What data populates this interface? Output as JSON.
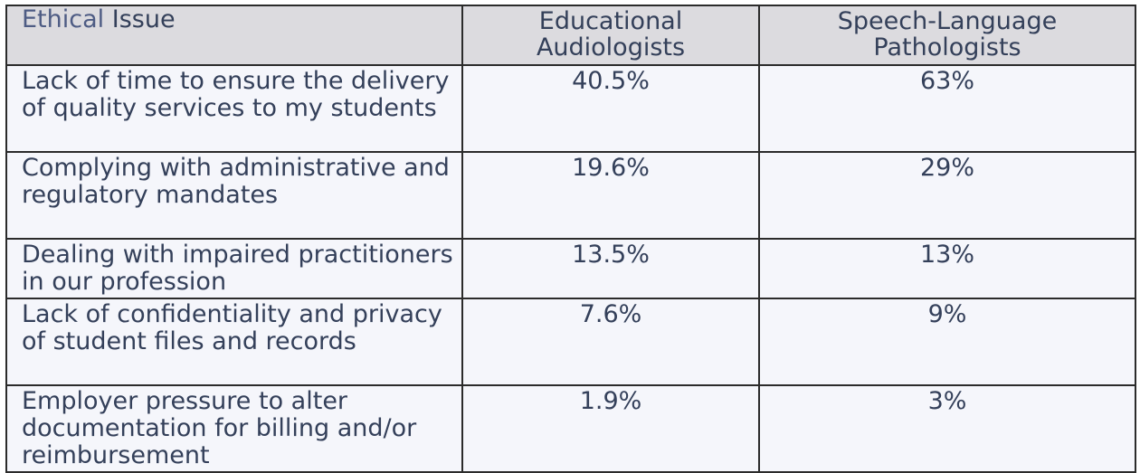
{
  "table": {
    "header": {
      "issue_word1": "Ethical",
      "issue_word2": " Issue",
      "col2": "Educational Audiologists",
      "col3": "Speech-Language Pathologists"
    },
    "rows": [
      {
        "issue": "Lack of time to ensure the delivery of quality services to my students",
        "audiologists": "40.5%",
        "slp": "63%"
      },
      {
        "issue": "Complying with administrative and regulatory mandates",
        "audiologists": "19.6%",
        "slp": "29%"
      },
      {
        "issue": "Dealing with impaired practitioners in our profession",
        "audiologists": "13.5%",
        "slp": "13%"
      },
      {
        "issue": "Lack of confidentiality and privacy of student files and records",
        "audiologists": "7.6%",
        "slp": "9%"
      },
      {
        "issue": "Employer pressure to alter documentation for billing and/or reimbursement",
        "audiologists": "1.9%",
        "slp": "3%"
      }
    ],
    "colors": {
      "header_bg": "#dcdbdf",
      "body_bg": "#f5f6fb",
      "text": "#34405a",
      "accent": "#4e5c84",
      "border": "#2b2b2b"
    }
  }
}
